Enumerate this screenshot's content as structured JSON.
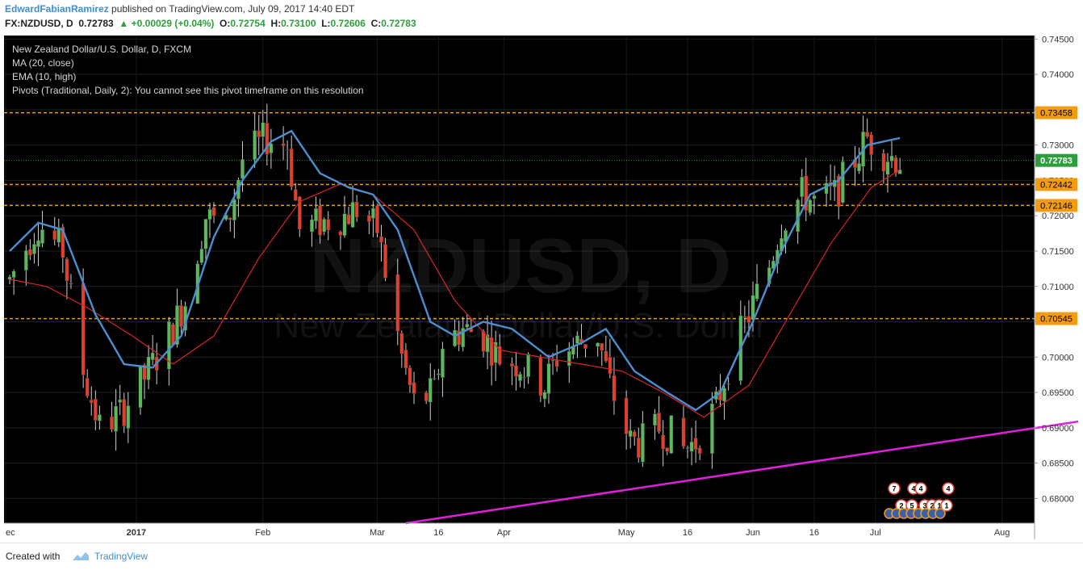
{
  "header": {
    "author": "EdwardFabianRamirez",
    "published": "published on TradingView.com, July 09, 2017 14:40 EDT",
    "symbol": "FX:NZDUSD, D",
    "last": "0.72783",
    "change": "+0.00029 (+0.04%)",
    "o_label": "O:",
    "o_value": "0.72754",
    "h_label": "H:",
    "h_value": "0.73100",
    "l_label": "L:",
    "l_value": "0.72606",
    "c_label": "C:",
    "c_value": "0.72783"
  },
  "legend": {
    "line1": "New Zealand Dollar/U.S. Dollar, D, FXCM",
    "line2": "MA (20, close)",
    "line3": "EMA (10, high)",
    "line4": "Pivots (Traditional, Daily, 2): You cannot see this pivot timeframe on this resolution"
  },
  "watermark": {
    "symbol": "NZDUSD, D",
    "name": "New Zealand Dollar/U.S. Dollar"
  },
  "footer": {
    "created_with": "Created with",
    "brand": "TradingView"
  },
  "colors": {
    "background": "#000000",
    "up": "#5cb85c",
    "down": "#e0412f",
    "ma20": "#d9252b",
    "ema10": "#4b8fd0",
    "level": "#f39c12",
    "trendline": "#e11fdf",
    "last_price": "#2e9e3c"
  },
  "chart_data": {
    "type": "candlestick",
    "symbol": "NZDUSD",
    "interval": "D",
    "date_range": [
      "2016-12-01",
      "2017-07-07"
    ],
    "x_ticks": [
      "ec",
      "2017",
      "Feb",
      "Mar",
      "16",
      "Apr",
      "May",
      "16",
      "Jun",
      "16",
      "Jul",
      "Aug"
    ],
    "y_ticks": [
      "0.74500",
      "0.74000",
      "0.73500",
      "0.73000",
      "0.72500",
      "0.72000",
      "0.71500",
      "0.71000",
      "0.70500",
      "0.70000",
      "0.69500",
      "0.69000",
      "0.68500",
      "0.68000"
    ],
    "y_range": [
      0.6765,
      0.7455
    ],
    "levels": [
      {
        "label": "0.73458",
        "value": 0.73458
      },
      {
        "label": "0.72442",
        "value": 0.72442
      },
      {
        "label": "0.72146",
        "value": 0.72146
      },
      {
        "label": "0.70545",
        "value": 0.70545
      }
    ],
    "last_price": {
      "label": "0.72783",
      "value": 0.72783
    },
    "trendline": [
      {
        "date": "2017-03-08",
        "value": 0.6765
      },
      {
        "date": "2017-08-29",
        "value": 0.6917
      }
    ],
    "close_anchors": [
      {
        "date": "2016-12-01",
        "value": 0.711
      },
      {
        "date": "2016-12-08",
        "value": 0.719
      },
      {
        "date": "2016-12-14",
        "value": 0.715
      },
      {
        "date": "2016-12-19",
        "value": 0.698
      },
      {
        "date": "2016-12-23",
        "value": 0.69
      },
      {
        "date": "2016-12-28",
        "value": 0.692
      },
      {
        "date": "2017-01-04",
        "value": 0.698
      },
      {
        "date": "2017-01-09",
        "value": 0.703
      },
      {
        "date": "2017-01-13",
        "value": 0.708
      },
      {
        "date": "2017-01-18",
        "value": 0.72
      },
      {
        "date": "2017-01-23",
        "value": 0.718
      },
      {
        "date": "2017-01-27",
        "value": 0.728
      },
      {
        "date": "2017-02-02",
        "value": 0.731
      },
      {
        "date": "2017-02-07",
        "value": 0.73
      },
      {
        "date": "2017-02-10",
        "value": 0.718
      },
      {
        "date": "2017-02-15",
        "value": 0.719
      },
      {
        "date": "2017-02-21",
        "value": 0.72
      },
      {
        "date": "2017-02-24",
        "value": 0.721
      },
      {
        "date": "2017-03-01",
        "value": 0.718
      },
      {
        "date": "2017-03-03",
        "value": 0.712
      },
      {
        "date": "2017-03-07",
        "value": 0.7
      },
      {
        "date": "2017-03-10",
        "value": 0.6935
      },
      {
        "date": "2017-03-15",
        "value": 0.695
      },
      {
        "date": "2017-03-17",
        "value": 0.702
      },
      {
        "date": "2017-03-22",
        "value": 0.704
      },
      {
        "date": "2017-03-27",
        "value": 0.703
      },
      {
        "date": "2017-03-31",
        "value": 0.7
      },
      {
        "date": "2017-04-05",
        "value": 0.699
      },
      {
        "date": "2017-04-11",
        "value": 0.696
      },
      {
        "date": "2017-04-14",
        "value": 0.7
      },
      {
        "date": "2017-04-19",
        "value": 0.702
      },
      {
        "date": "2017-04-24",
        "value": 0.703
      },
      {
        "date": "2017-04-27",
        "value": 0.696
      },
      {
        "date": "2017-05-02",
        "value": 0.688
      },
      {
        "date": "2017-05-05",
        "value": 0.688
      },
      {
        "date": "2017-05-09",
        "value": 0.69
      },
      {
        "date": "2017-05-12",
        "value": 0.689
      },
      {
        "date": "2017-05-15",
        "value": 0.687
      },
      {
        "date": "2017-05-18",
        "value": 0.688
      },
      {
        "date": "2017-05-23",
        "value": 0.693
      },
      {
        "date": "2017-05-26",
        "value": 0.699
      },
      {
        "date": "2017-05-31",
        "value": 0.706
      },
      {
        "date": "2017-06-05",
        "value": 0.713
      },
      {
        "date": "2017-06-08",
        "value": 0.719
      },
      {
        "date": "2017-06-13",
        "value": 0.723
      },
      {
        "date": "2017-06-16",
        "value": 0.722
      },
      {
        "date": "2017-06-21",
        "value": 0.723
      },
      {
        "date": "2017-06-26",
        "value": 0.728
      },
      {
        "date": "2017-06-29",
        "value": 0.731
      },
      {
        "date": "2017-07-03",
        "value": 0.729
      },
      {
        "date": "2017-07-07",
        "value": 0.7278
      }
    ],
    "ema10_anchors": [
      {
        "date": "2016-12-01",
        "value": 0.715
      },
      {
        "date": "2016-12-08",
        "value": 0.719
      },
      {
        "date": "2016-12-14",
        "value": 0.718
      },
      {
        "date": "2016-12-22",
        "value": 0.706
      },
      {
        "date": "2016-12-29",
        "value": 0.699
      },
      {
        "date": "2017-01-05",
        "value": 0.6985
      },
      {
        "date": "2017-01-12",
        "value": 0.703
      },
      {
        "date": "2017-01-20",
        "value": 0.717
      },
      {
        "date": "2017-01-27",
        "value": 0.725
      },
      {
        "date": "2017-02-03",
        "value": 0.7305
      },
      {
        "date": "2017-02-08",
        "value": 0.732
      },
      {
        "date": "2017-02-15",
        "value": 0.726
      },
      {
        "date": "2017-02-22",
        "value": 0.724
      },
      {
        "date": "2017-02-28",
        "value": 0.723
      },
      {
        "date": "2017-03-06",
        "value": 0.718
      },
      {
        "date": "2017-03-14",
        "value": 0.705
      },
      {
        "date": "2017-03-20",
        "value": 0.703
      },
      {
        "date": "2017-03-27",
        "value": 0.705
      },
      {
        "date": "2017-04-03",
        "value": 0.704
      },
      {
        "date": "2017-04-12",
        "value": 0.7
      },
      {
        "date": "2017-04-20",
        "value": 0.702
      },
      {
        "date": "2017-04-26",
        "value": 0.704
      },
      {
        "date": "2017-05-03",
        "value": 0.698
      },
      {
        "date": "2017-05-11",
        "value": 0.695
      },
      {
        "date": "2017-05-18",
        "value": 0.6925
      },
      {
        "date": "2017-05-24",
        "value": 0.695
      },
      {
        "date": "2017-06-01",
        "value": 0.705
      },
      {
        "date": "2017-06-08",
        "value": 0.715
      },
      {
        "date": "2017-06-15",
        "value": 0.723
      },
      {
        "date": "2017-06-22",
        "value": 0.725
      },
      {
        "date": "2017-06-29",
        "value": 0.73
      },
      {
        "date": "2017-07-07",
        "value": 0.731
      }
    ],
    "ma20_anchors": [
      {
        "date": "2016-12-01",
        "value": 0.711
      },
      {
        "date": "2016-12-10",
        "value": 0.71
      },
      {
        "date": "2016-12-20",
        "value": 0.707
      },
      {
        "date": "2016-12-31",
        "value": 0.703
      },
      {
        "date": "2017-01-10",
        "value": 0.699
      },
      {
        "date": "2017-01-20",
        "value": 0.703
      },
      {
        "date": "2017-01-31",
        "value": 0.714
      },
      {
        "date": "2017-02-10",
        "value": 0.722
      },
      {
        "date": "2017-02-20",
        "value": 0.7245
      },
      {
        "date": "2017-02-28",
        "value": 0.723
      },
      {
        "date": "2017-03-10",
        "value": 0.718
      },
      {
        "date": "2017-03-20",
        "value": 0.708
      },
      {
        "date": "2017-03-31",
        "value": 0.701
      },
      {
        "date": "2017-04-10",
        "value": 0.7
      },
      {
        "date": "2017-04-20",
        "value": 0.699
      },
      {
        "date": "2017-04-30",
        "value": 0.698
      },
      {
        "date": "2017-05-10",
        "value": 0.695
      },
      {
        "date": "2017-05-20",
        "value": 0.6915
      },
      {
        "date": "2017-05-31",
        "value": 0.696
      },
      {
        "date": "2017-06-10",
        "value": 0.706
      },
      {
        "date": "2017-06-20",
        "value": 0.716
      },
      {
        "date": "2017-06-30",
        "value": 0.724
      },
      {
        "date": "2017-07-07",
        "value": 0.7265
      }
    ],
    "event_markers": [
      "7",
      "4",
      "4",
      "4",
      "2",
      "5",
      "3",
      "2",
      "1",
      "1"
    ]
  }
}
